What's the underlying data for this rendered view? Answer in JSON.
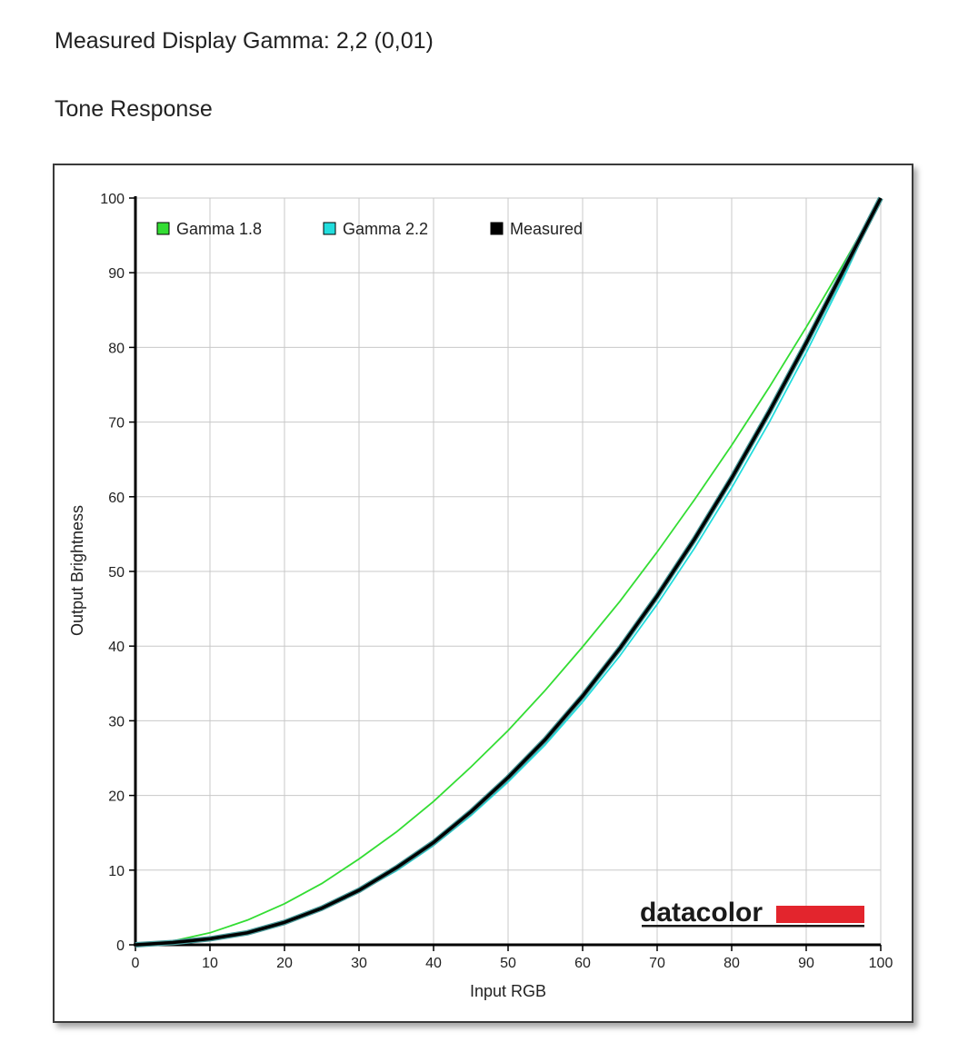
{
  "header": {
    "gamma_text": "Measured Display Gamma: 2,2 (0,01)",
    "section_title": "Tone Response"
  },
  "brand": {
    "logo_text": "datacolor",
    "logo_bar_color": "#e3252d"
  },
  "chart_data": {
    "type": "line",
    "title": "",
    "xlabel": "Input RGB",
    "ylabel": "Output Brightness",
    "xlim": [
      0,
      100
    ],
    "ylim": [
      0,
      100
    ],
    "xticks": [
      0,
      10,
      20,
      30,
      40,
      50,
      60,
      70,
      80,
      90,
      100
    ],
    "yticks": [
      0,
      10,
      20,
      30,
      40,
      50,
      60,
      70,
      80,
      90,
      100
    ],
    "xtick_labels": [
      "0",
      "10",
      "20",
      "30",
      "40",
      "50",
      "60",
      "70",
      "80",
      "90",
      "100"
    ],
    "ytick_labels": [
      "0",
      "10",
      "20",
      "30",
      "40",
      "50",
      "60",
      "70",
      "80",
      "90",
      "100"
    ],
    "grid": true,
    "legend_position": "top-left",
    "x": [
      0,
      5,
      10,
      15,
      20,
      25,
      30,
      35,
      40,
      45,
      50,
      55,
      60,
      65,
      70,
      75,
      80,
      85,
      90,
      95,
      100
    ],
    "series": [
      {
        "name": "Gamma 1.8",
        "color": "#33dd33",
        "values": [
          0,
          0.5,
          1.6,
          3.3,
          5.5,
          8.2,
          11.5,
          15.1,
          19.2,
          23.8,
          28.7,
          34.1,
          39.9,
          46.0,
          52.6,
          59.6,
          66.9,
          74.6,
          82.7,
          91.2,
          100
        ]
      },
      {
        "name": "Gamma 2.2",
        "color": "#22dddd",
        "values": [
          0,
          0.1,
          0.6,
          1.5,
          2.9,
          4.7,
          7.1,
          9.9,
          13.3,
          17.3,
          21.8,
          26.8,
          32.5,
          38.7,
          45.6,
          53.1,
          61.2,
          69.9,
          79.3,
          89.3,
          100
        ]
      },
      {
        "name": "Measured",
        "color": "#000000",
        "values": [
          0,
          0.3,
          0.8,
          1.6,
          3.0,
          4.9,
          7.3,
          10.3,
          13.7,
          17.8,
          22.4,
          27.5,
          33.3,
          39.7,
          46.7,
          54.3,
          62.5,
          71.3,
          80.6,
          90.3,
          100
        ]
      }
    ]
  }
}
